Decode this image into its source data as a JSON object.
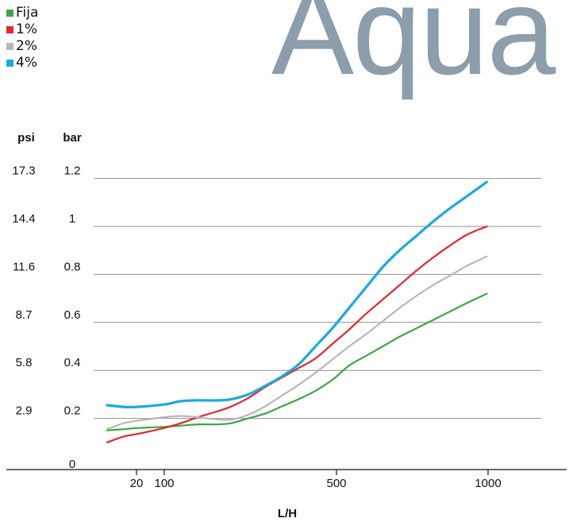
{
  "logo_text": "Aqua",
  "colors": {
    "logo": "#8c9eab",
    "grid": "#8f8f8f",
    "axis": "#111111"
  },
  "chart_data": {
    "type": "line",
    "xlabel": "L/H",
    "x_ticks": [
      20,
      100,
      500,
      1000
    ],
    "left_axis_header": "psi",
    "right_axis_header": "bar",
    "psi_ticks": [
      "0",
      "2.9",
      "5.8",
      "8.7",
      "11.6",
      "14.4",
      "17.3"
    ],
    "bar_ticks": [
      "0.2",
      "0.4",
      "0.6",
      "0.8",
      "1",
      "1.2"
    ],
    "ylim_bar": [
      0,
      1.2
    ],
    "grid": true,
    "legend_position": "top-left",
    "series": [
      {
        "name": "Fija",
        "color": "#3aa844",
        "width": 2.2,
        "points": [
          [
            -70,
            0.15
          ],
          [
            -20,
            0.155
          ],
          [
            20,
            0.16
          ],
          [
            100,
            0.165
          ],
          [
            150,
            0.17
          ],
          [
            200,
            0.175
          ],
          [
            260,
            0.175
          ],
          [
            300,
            0.18
          ],
          [
            350,
            0.2
          ],
          [
            400,
            0.22
          ],
          [
            450,
            0.25
          ],
          [
            500,
            0.28
          ],
          [
            550,
            0.315
          ],
          [
            600,
            0.36
          ],
          [
            650,
            0.42
          ],
          [
            700,
            0.46
          ],
          [
            750,
            0.5
          ],
          [
            800,
            0.54
          ],
          [
            850,
            0.575
          ],
          [
            900,
            0.61
          ],
          [
            950,
            0.645
          ],
          [
            1000,
            0.68
          ],
          [
            1060,
            0.72
          ]
        ]
      },
      {
        "name": "1%",
        "color": "#e3262c",
        "width": 2.2,
        "points": [
          [
            -70,
            0.1
          ],
          [
            -20,
            0.125
          ],
          [
            20,
            0.135
          ],
          [
            100,
            0.16
          ],
          [
            150,
            0.18
          ],
          [
            200,
            0.205
          ],
          [
            260,
            0.23
          ],
          [
            300,
            0.25
          ],
          [
            350,
            0.285
          ],
          [
            400,
            0.33
          ],
          [
            450,
            0.37
          ],
          [
            500,
            0.41
          ],
          [
            550,
            0.45
          ],
          [
            600,
            0.51
          ],
          [
            650,
            0.57
          ],
          [
            700,
            0.635
          ],
          [
            750,
            0.695
          ],
          [
            800,
            0.755
          ],
          [
            850,
            0.815
          ],
          [
            900,
            0.87
          ],
          [
            950,
            0.92
          ],
          [
            1000,
            0.965
          ],
          [
            1060,
            1.0
          ]
        ]
      },
      {
        "name": "2%",
        "color": "#b8b8b8",
        "width": 2.2,
        "points": [
          [
            -70,
            0.155
          ],
          [
            -20,
            0.18
          ],
          [
            20,
            0.19
          ],
          [
            100,
            0.205
          ],
          [
            150,
            0.21
          ],
          [
            200,
            0.205
          ],
          [
            260,
            0.195
          ],
          [
            300,
            0.195
          ],
          [
            350,
            0.215
          ],
          [
            400,
            0.25
          ],
          [
            450,
            0.295
          ],
          [
            500,
            0.34
          ],
          [
            550,
            0.39
          ],
          [
            600,
            0.445
          ],
          [
            650,
            0.5
          ],
          [
            700,
            0.55
          ],
          [
            750,
            0.605
          ],
          [
            800,
            0.66
          ],
          [
            850,
            0.71
          ],
          [
            900,
            0.755
          ],
          [
            950,
            0.795
          ],
          [
            1000,
            0.835
          ],
          [
            1060,
            0.875
          ]
        ]
      },
      {
        "name": "4%",
        "color": "#1aaae2",
        "width": 3.2,
        "points": [
          [
            -70,
            0.255
          ],
          [
            -20,
            0.248
          ],
          [
            20,
            0.248
          ],
          [
            100,
            0.258
          ],
          [
            150,
            0.272
          ],
          [
            200,
            0.275
          ],
          [
            260,
            0.275
          ],
          [
            300,
            0.28
          ],
          [
            350,
            0.3
          ],
          [
            400,
            0.335
          ],
          [
            450,
            0.375
          ],
          [
            500,
            0.425
          ],
          [
            550,
            0.5
          ],
          [
            600,
            0.575
          ],
          [
            650,
            0.66
          ],
          [
            700,
            0.745
          ],
          [
            750,
            0.83
          ],
          [
            800,
            0.9
          ],
          [
            850,
            0.96
          ],
          [
            900,
            1.02
          ],
          [
            950,
            1.075
          ],
          [
            1000,
            1.125
          ],
          [
            1060,
            1.185
          ]
        ]
      }
    ]
  }
}
